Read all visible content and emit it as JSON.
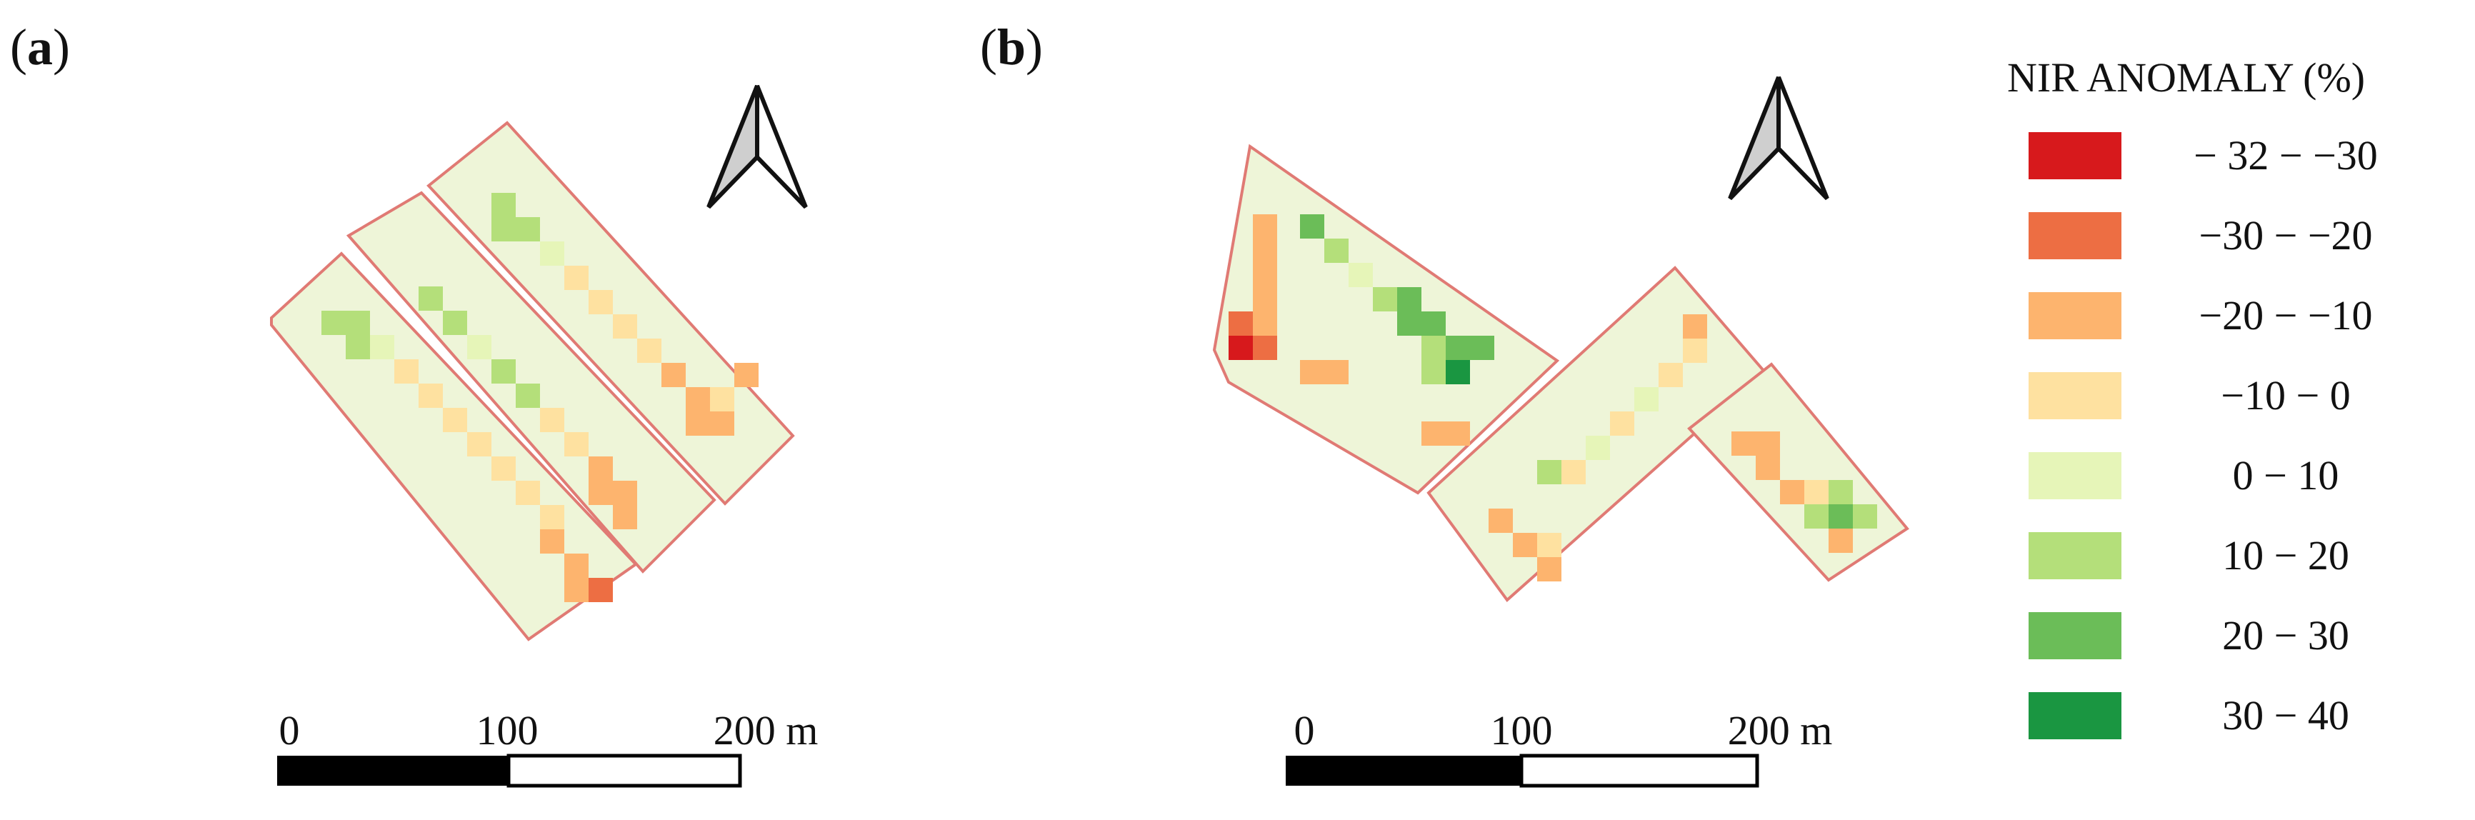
{
  "panels": [
    {
      "label": "(a)",
      "letter": "a"
    },
    {
      "label": "(b)",
      "letter": "b"
    }
  ],
  "scale_bars": [
    {
      "ticks": [
        "0",
        "100",
        "200 m"
      ]
    },
    {
      "ticks": [
        "0",
        "100",
        "200 m"
      ]
    }
  ],
  "legend": {
    "title": "NIR ANOMALY (%)",
    "classes": [
      {
        "label": "− 32 − −30",
        "color": "#d7191c"
      },
      {
        "label": "−30 − −20",
        "color": "#ed6e43"
      },
      {
        "label": "−20 − −10",
        "color": "#fdb46e"
      },
      {
        "label": "−10 − 0",
        "color": "#fee1a0"
      },
      {
        "label": "0 − 10",
        "color": "#e6f5b8"
      },
      {
        "label": "10 − 20",
        "color": "#b4df7a"
      },
      {
        "label": "20 − 30",
        "color": "#6bbd58"
      },
      {
        "label": "30 − 40",
        "color": "#1a9641"
      }
    ]
  },
  "colors": {
    "field_outline": "#e07a74",
    "field_background": "#eef5d8",
    "north_arrow_fill": "#cfcfcf"
  },
  "icons": [
    "north-arrow-icon"
  ]
}
